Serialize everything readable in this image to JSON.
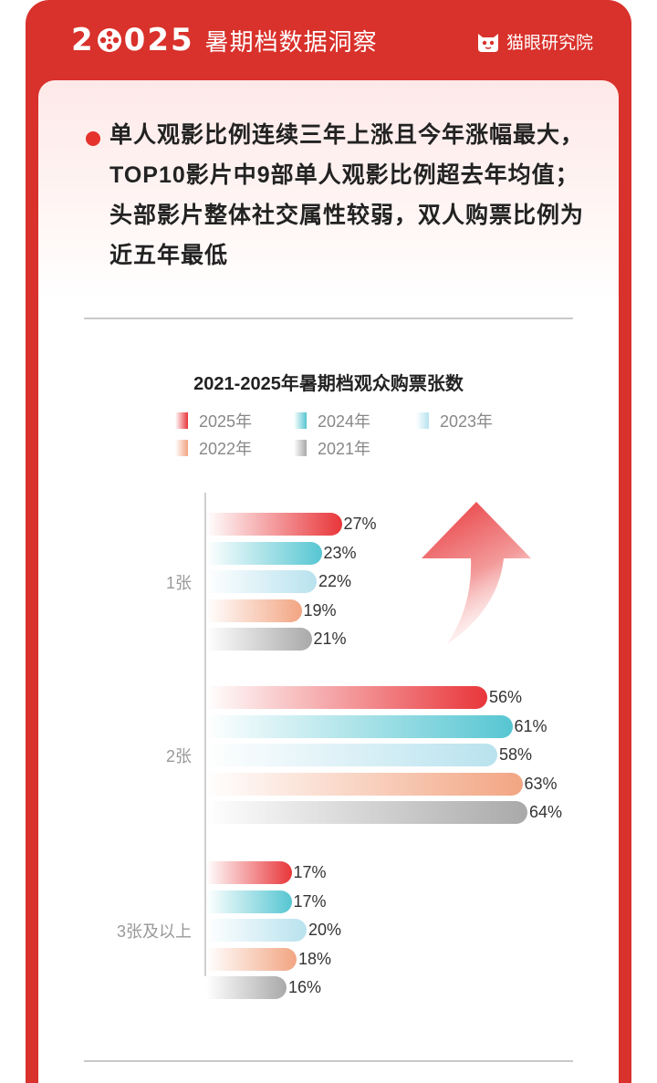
{
  "header": {
    "year": "2025",
    "title": "暑期档数据洞察",
    "brand": "猫眼研究院"
  },
  "headline": "单人观影比例连续三年上涨且今年涨幅最大，TOP10影片中9部单人观影比例超去年均值；头部影片整体社交属性较弱，双人购票比例为近五年最低",
  "chart_data": {
    "type": "bar",
    "orientation": "horizontal",
    "title": "2021-2025年暑期档观众购票张数",
    "categories": [
      "1张",
      "2张",
      "3张及以上"
    ],
    "series": [
      {
        "name": "2025年",
        "values": [
          27,
          56,
          17
        ],
        "color": "#e8363a"
      },
      {
        "name": "2024年",
        "values": [
          23,
          61,
          17
        ],
        "color": "#56c6d2"
      },
      {
        "name": "2023年",
        "values": [
          22,
          58,
          20
        ],
        "color": "#b8e2ee"
      },
      {
        "name": "2022年",
        "values": [
          19,
          63,
          18
        ],
        "color": "#f2a582"
      },
      {
        "name": "2021年",
        "values": [
          21,
          64,
          16
        ],
        "color": "#a9a9a9"
      }
    ],
    "value_suffix": "%",
    "xlim": [
      0,
      70
    ],
    "legend_position": "top"
  }
}
